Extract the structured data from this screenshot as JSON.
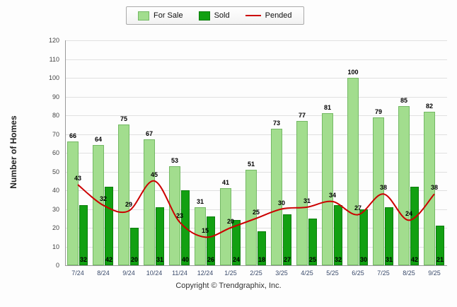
{
  "legend": {
    "for_sale": "For Sale",
    "sold": "Sold",
    "pended": "Pended"
  },
  "ylabel": "Number of Homes",
  "footer": "Copyright © Trendgraphix, Inc.",
  "chart_data": {
    "type": "bar",
    "title": "",
    "xlabel": "",
    "ylabel": "Number of Homes",
    "ylim": [
      0,
      120
    ],
    "ytick_step": 10,
    "grid": true,
    "legend_position": "top-center",
    "categories": [
      "7/24",
      "8/24",
      "9/24",
      "10/24",
      "11/24",
      "12/24",
      "1/25",
      "2/25",
      "3/25",
      "4/25",
      "5/25",
      "6/25",
      "7/25",
      "8/25",
      "9/25"
    ],
    "series": [
      {
        "name": "For Sale",
        "type": "bar",
        "color": "#a2dd8e",
        "border_color": "#74b964",
        "values": [
          66,
          64,
          75,
          67,
          53,
          31,
          41,
          51,
          73,
          77,
          81,
          100,
          79,
          85,
          82
        ]
      },
      {
        "name": "Sold",
        "type": "bar",
        "color": "#12a012",
        "border_color": "#0b7d0b",
        "values": [
          32,
          42,
          20,
          31,
          40,
          26,
          24,
          18,
          27,
          25,
          32,
          30,
          31,
          42,
          21
        ]
      },
      {
        "name": "Pended",
        "type": "line",
        "color": "#cc0000",
        "values": [
          43,
          32,
          29,
          45,
          23,
          15,
          20,
          25,
          30,
          31,
          34,
          27,
          38,
          24,
          38
        ]
      }
    ]
  }
}
